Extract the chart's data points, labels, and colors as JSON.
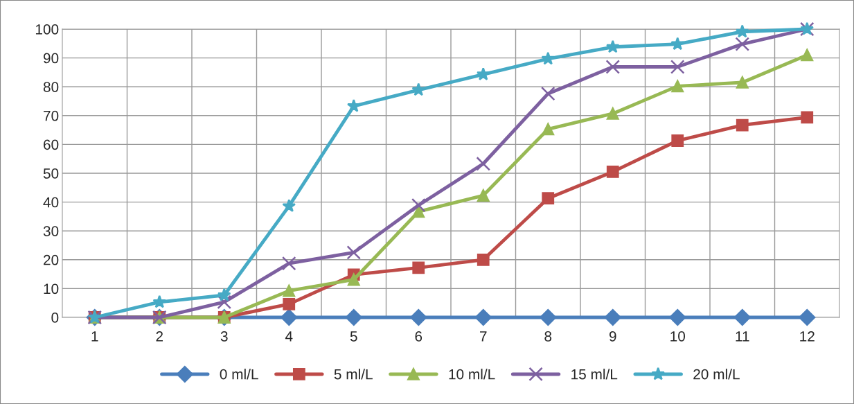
{
  "chart_data": {
    "type": "line",
    "categories": [
      "1",
      "2",
      "3",
      "4",
      "5",
      "6",
      "7",
      "8",
      "9",
      "10",
      "11",
      "12"
    ],
    "series": [
      {
        "name": "0 ml/L",
        "color": "#4a7ebb",
        "marker": "diamond",
        "values": [
          0,
          0,
          0,
          0,
          0,
          0,
          0,
          0,
          0,
          0,
          0,
          0
        ]
      },
      {
        "name": "5 ml/L",
        "color": "#be4b48",
        "marker": "square",
        "values": [
          0,
          0,
          0,
          4.6,
          14.8,
          17.2,
          20,
          41.3,
          50.5,
          61.3,
          66.7,
          69.4
        ]
      },
      {
        "name": "10 ml/L",
        "color": "#98b954",
        "marker": "triangle",
        "values": [
          0,
          0,
          0,
          9.2,
          13.1,
          36.7,
          42.3,
          65.3,
          70.7,
          80.2,
          81.5,
          91
        ]
      },
      {
        "name": "15 ml/L",
        "color": "#7d60a0",
        "marker": "cross",
        "values": [
          0,
          0,
          5.3,
          18.7,
          22.5,
          38.9,
          53.3,
          77.6,
          86.9,
          86.9,
          94.8,
          100
        ]
      },
      {
        "name": "20 ml/L",
        "color": "#46aac5",
        "marker": "star",
        "values": [
          0,
          5.3,
          7.7,
          38.6,
          73.3,
          78.9,
          84.3,
          89.7,
          93.8,
          94.8,
          99.1,
          100
        ]
      }
    ],
    "ylim": [
      0,
      100
    ],
    "yticks": [
      0,
      10,
      20,
      30,
      40,
      50,
      60,
      70,
      80,
      90,
      100
    ],
    "grid": true,
    "legend": "bottom",
    "line_style": "solid"
  }
}
